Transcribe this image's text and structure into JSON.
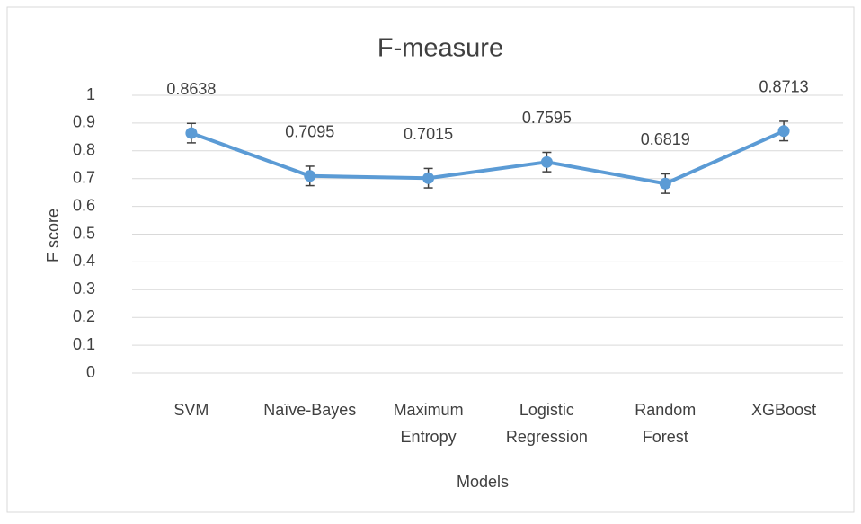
{
  "chart_data": {
    "type": "line",
    "title": "F-measure",
    "x_label": "Models",
    "y_label": "F score",
    "categories": [
      "SVM",
      "Naïve-Bayes",
      "Maximum Entropy",
      "Logistic Regression",
      "Random Forest",
      "XGBoost"
    ],
    "series": [
      {
        "name": "F-measure",
        "color": "#5b9bd5",
        "values": [
          0.8638,
          0.7095,
          0.7015,
          0.7595,
          0.6819,
          0.8713
        ],
        "errors": [
          0.035,
          0.035,
          0.035,
          0.035,
          0.035,
          0.035
        ]
      }
    ],
    "ylim": [
      0,
      1
    ],
    "yticks": [
      0,
      0.1,
      0.2,
      0.3,
      0.4,
      0.5,
      0.6,
      0.7,
      0.8,
      0.9,
      1
    ],
    "grid": true
  }
}
